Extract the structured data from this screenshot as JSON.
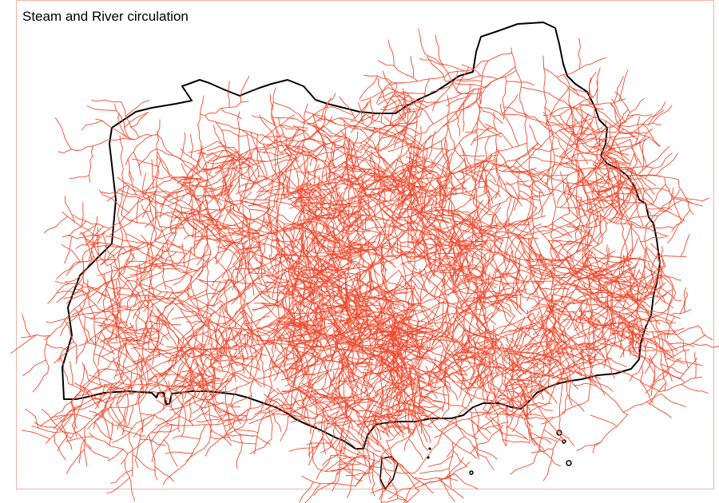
{
  "map": {
    "title": "Steam and River circulation",
    "colors": {
      "background": "#ffffff",
      "coastline": "#000000",
      "rivers": "#f04a2e",
      "frame": "#f0b4a8"
    },
    "layers": [
      "coastline",
      "rivers",
      "islands"
    ]
  }
}
